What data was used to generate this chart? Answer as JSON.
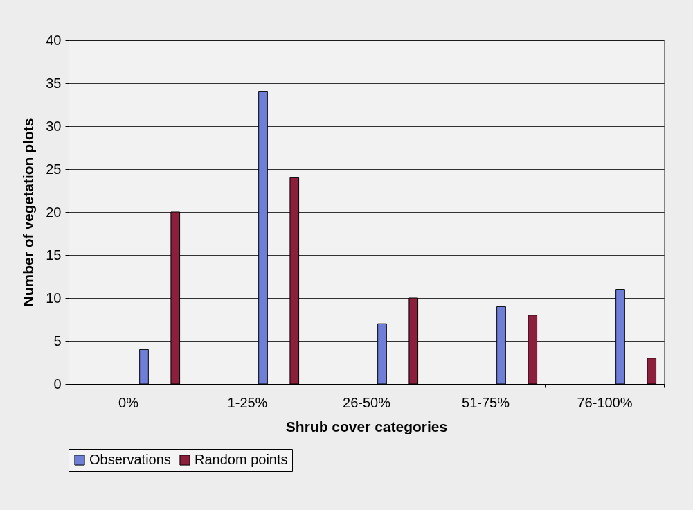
{
  "chart_data": {
    "type": "bar",
    "xlabel": "Shrub cover categories",
    "ylabel": "Number of vegetation plots",
    "categories": [
      "0%",
      "1-25%",
      "26-50%",
      "51-75%",
      "76-100%"
    ],
    "series": [
      {
        "name": "Observations",
        "color": "#6f7fd8",
        "values": [
          4,
          34,
          7,
          9,
          11
        ]
      },
      {
        "name": "Random points",
        "color": "#8c1f3c",
        "values": [
          20,
          24,
          10,
          8,
          3
        ]
      }
    ],
    "ylim": [
      0,
      40
    ],
    "yticks": [
      0,
      5,
      10,
      15,
      20,
      25,
      30,
      35,
      40
    ],
    "grid": "y",
    "legend": "bottom"
  }
}
